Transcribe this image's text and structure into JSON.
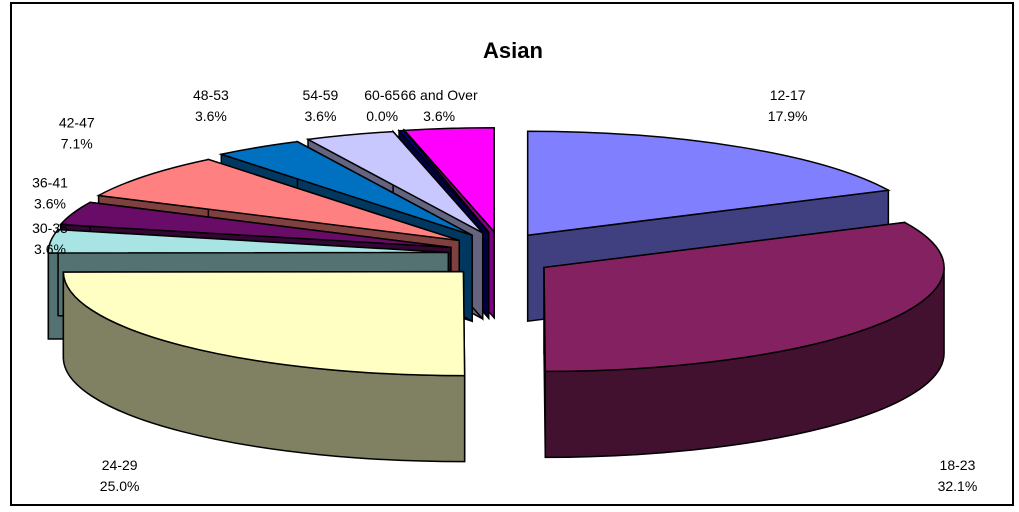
{
  "chart_data": {
    "type": "pie",
    "variant": "3d-exploded",
    "title": "Asian",
    "slices": [
      {
        "label": "12-17",
        "pct_label": "17.9%",
        "value": 17.9,
        "color": "#8080FF"
      },
      {
        "label": "18-23",
        "pct_label": "32.1%",
        "value": 32.1,
        "color": "#842160"
      },
      {
        "label": "24-29",
        "pct_label": "25.0%",
        "value": 25.0,
        "color": "#FFFFC4"
      },
      {
        "label": "30-35",
        "pct_label": "3.6%",
        "value": 3.6,
        "color": "#A8E4E4"
      },
      {
        "label": "36-41",
        "pct_label": "3.6%",
        "value": 3.6,
        "color": "#680C68"
      },
      {
        "label": "42-47",
        "pct_label": "7.1%",
        "value": 7.1,
        "color": "#FF8080"
      },
      {
        "label": "48-53",
        "pct_label": "3.6%",
        "value": 3.6,
        "color": "#0070C0"
      },
      {
        "label": "54-59",
        "pct_label": "3.6%",
        "value": 3.6,
        "color": "#C8C8FF"
      },
      {
        "label": "60-65",
        "pct_label": "0.0%",
        "value": 0.0,
        "color": "#000080"
      },
      {
        "label": "66 and Over",
        "pct_label": "3.6%",
        "value": 3.6,
        "color": "#FF00FF"
      }
    ]
  }
}
